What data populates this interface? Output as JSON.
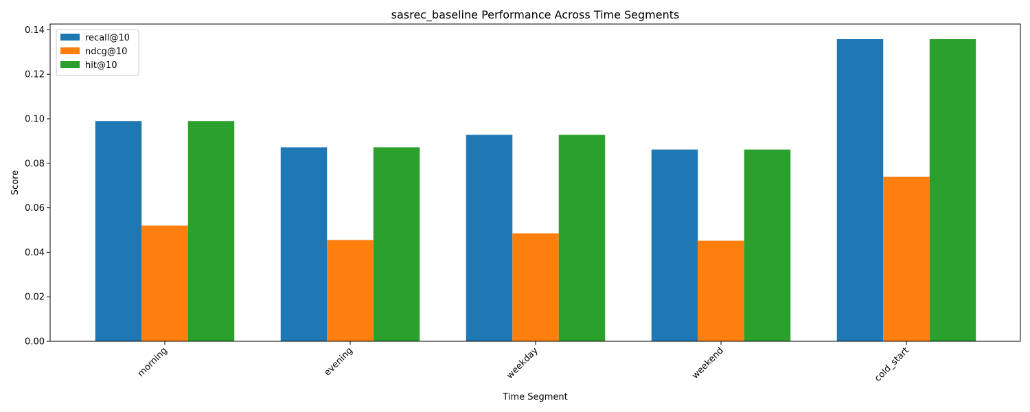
{
  "chart_data": {
    "type": "bar",
    "title": "sasrec_baseline Performance Across Time Segments",
    "xlabel": "Time Segment",
    "ylabel": "Score",
    "categories": [
      "morning",
      "evening",
      "weekday",
      "weekend",
      "cold_start"
    ],
    "series": [
      {
        "name": "recall@10",
        "color": "#1f77b4",
        "values": [
          0.099,
          0.0872,
          0.0928,
          0.0862,
          0.1358
        ]
      },
      {
        "name": "ndcg@10",
        "color": "#ff7f0e",
        "values": [
          0.052,
          0.0455,
          0.0485,
          0.0452,
          0.0739
        ]
      },
      {
        "name": "hit@10",
        "color": "#2ca02c",
        "values": [
          0.099,
          0.0872,
          0.0928,
          0.0862,
          0.1358
        ]
      }
    ],
    "ylim": [
      0,
      0.1426
    ],
    "yticks": [
      "0.00",
      "0.02",
      "0.04",
      "0.06",
      "0.08",
      "0.10",
      "0.12",
      "0.14"
    ],
    "legend_position": "top-left",
    "grid": false,
    "xtick_rotation": 45
  }
}
